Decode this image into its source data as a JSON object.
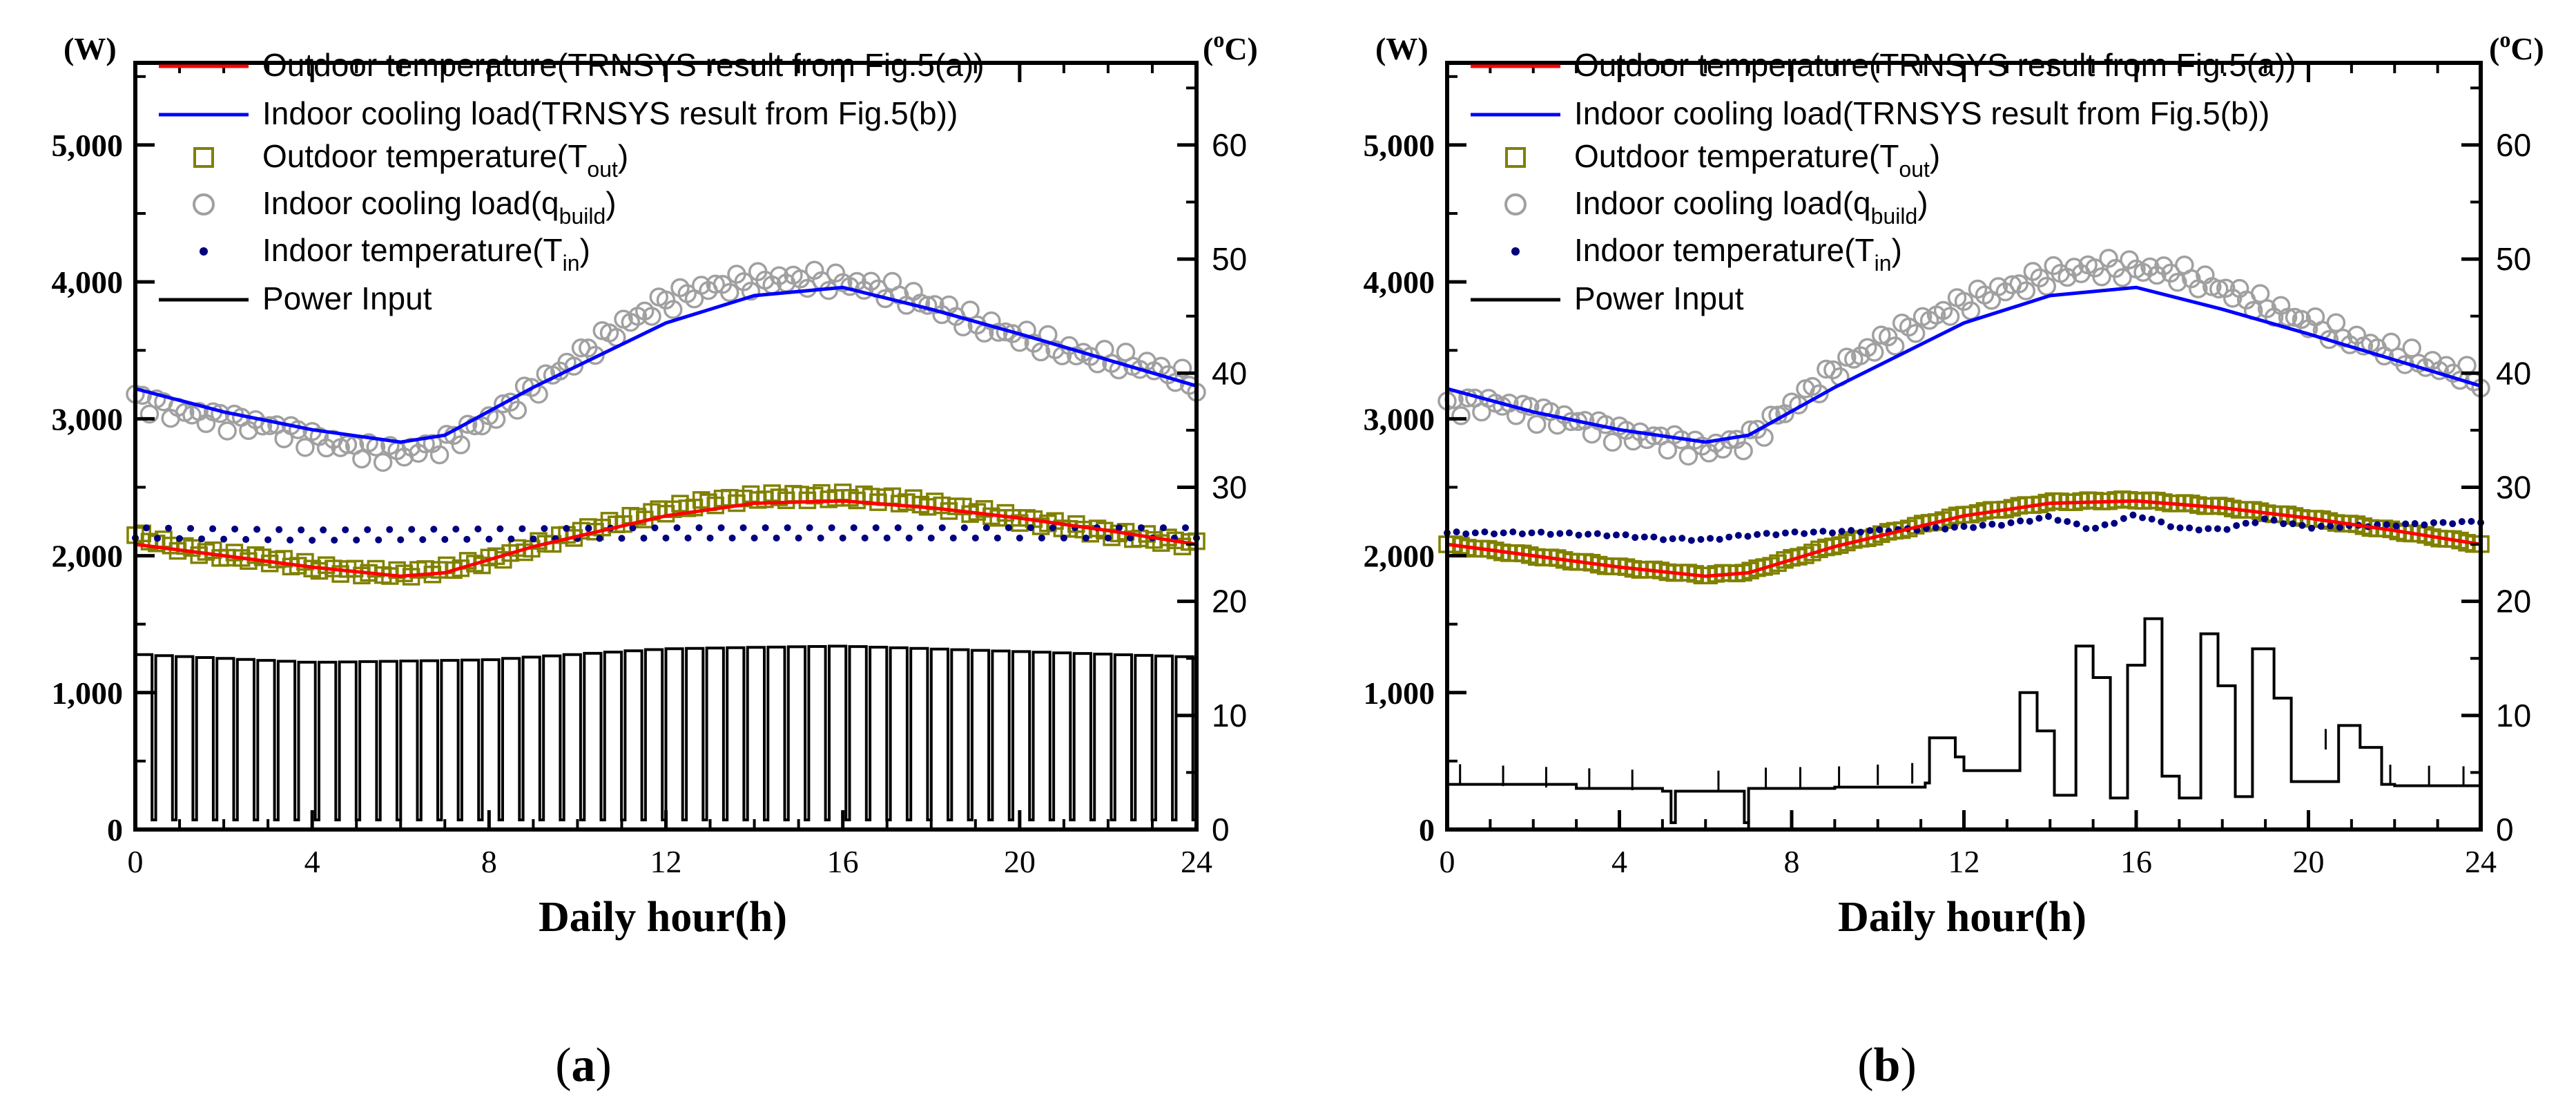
{
  "figure": {
    "panel_labels": [
      "(a)",
      "(b)"
    ]
  },
  "legend": {
    "outdoor_trnsys": "Outdoor temperature(TRNSYS result from Fig.5(a))",
    "indoor_trnsys": "Indoor cooling load(TRNSYS result from Fig.5(b))",
    "outdoor_temp_main": "Outdoor temperature(T",
    "outdoor_temp_sub": "out",
    "indoor_load_main": "Indoor cooling load(q",
    "indoor_load_sub": "build",
    "indoor_temp_main": "Indoor temperature(T",
    "indoor_temp_sub": "in",
    "close_paren": ")",
    "power": "Power Input"
  },
  "colors": {
    "outdoor_line": "#ff0000",
    "indoor_line": "#0000ff",
    "outdoor_marker": "#808000",
    "indoor_marker": "#a0a0a0",
    "indoor_temp_dot": "#000080",
    "power_line": "#000000"
  },
  "chart_data": [
    {
      "type": "line",
      "panel": "(a)",
      "xlabel": "Daily hour(h)",
      "ylabel_left": "(W)",
      "ylabel_right_main": "(",
      "ylabel_right_sup": "o",
      "ylabel_right_unit": "C)",
      "xlim": [
        0,
        24
      ],
      "ylim_left": [
        0,
        5600
      ],
      "ylim_right": [
        0,
        67.2
      ],
      "xticks": [
        "0",
        "4",
        "8",
        "12",
        "16",
        "20",
        "24"
      ],
      "yticks_left": [
        "0",
        "1,000",
        "2,000",
        "3,000",
        "4,000",
        "5,000"
      ],
      "yticks_right": [
        "0",
        "10",
        "20",
        "30",
        "40",
        "50",
        "60"
      ],
      "series": {
        "outdoor_trnsys_C": {
          "x": [
            0,
            2,
            4,
            6,
            7,
            9,
            12,
            14,
            16,
            18,
            20,
            22,
            24
          ],
          "y": [
            25.0,
            24.0,
            23.0,
            22.2,
            22.5,
            24.8,
            27.5,
            28.6,
            28.8,
            28.2,
            27.3,
            26.2,
            25.0
          ]
        },
        "indoor_trnsys_W": {
          "x": [
            0,
            2,
            4,
            6,
            7,
            9,
            12,
            14,
            16,
            18,
            20,
            22,
            24
          ],
          "y": [
            3220,
            3050,
            2920,
            2830,
            2880,
            3230,
            3700,
            3900,
            3960,
            3800,
            3620,
            3430,
            3240
          ]
        },
        "outdoor_scatter_C": {
          "x": [
            0,
            1,
            2,
            3,
            4,
            5,
            6,
            7,
            8,
            9,
            10,
            11,
            12,
            13,
            14,
            15,
            16,
            17,
            18,
            19,
            20,
            21,
            22,
            23,
            24
          ],
          "y": [
            25.8,
            24.7,
            24.0,
            23.7,
            23.0,
            22.6,
            22.4,
            22.8,
            23.6,
            24.8,
            26.0,
            27.0,
            28.0,
            28.7,
            29.1,
            29.2,
            29.2,
            29.0,
            28.5,
            27.9,
            27.2,
            26.6,
            26.0,
            25.5,
            25.0
          ]
        },
        "indoor_scatter_W": {
          "x": [
            0,
            1,
            2,
            3,
            4,
            5,
            6,
            7,
            8,
            9,
            10,
            11,
            12,
            13,
            14,
            15,
            16,
            17,
            18,
            19,
            20,
            21,
            22,
            23,
            24
          ],
          "y": [
            3150,
            3050,
            3000,
            2950,
            2860,
            2780,
            2750,
            2820,
            3000,
            3220,
            3450,
            3680,
            3860,
            3960,
            4010,
            4020,
            4000,
            3940,
            3830,
            3700,
            3600,
            3500,
            3430,
            3380,
            3250
          ]
        },
        "indoor_temp_C": {
          "x": [
            0,
            4,
            8,
            12,
            16,
            20,
            24
          ],
          "y": [
            26.0,
            25.8,
            25.9,
            26.0,
            26.0,
            26.0,
            26.0
          ]
        },
        "power_W": {
          "x": [
            0,
            4,
            8,
            12,
            16,
            20,
            24
          ],
          "y_high": [
            1280,
            1220,
            1240,
            1320,
            1340,
            1300,
            1260
          ],
          "y_low": 70,
          "cycles": 52
        }
      }
    },
    {
      "type": "line",
      "panel": "(b)",
      "xlabel": "Daily hour(h)",
      "ylabel_left": "(W)",
      "ylabel_right_main": "(",
      "ylabel_right_sup": "o",
      "ylabel_right_unit": "C)",
      "xlim": [
        0,
        24
      ],
      "ylim_left": [
        0,
        5600
      ],
      "ylim_right": [
        0,
        67.2
      ],
      "xticks": [
        "0",
        "4",
        "8",
        "12",
        "16",
        "20",
        "24"
      ],
      "yticks_left": [
        "0",
        "1,000",
        "2,000",
        "3,000",
        "4,000",
        "5,000"
      ],
      "yticks_right": [
        "0",
        "10",
        "20",
        "30",
        "40",
        "50",
        "60"
      ],
      "series": {
        "outdoor_trnsys_C": {
          "x": [
            0,
            2,
            4,
            6,
            7,
            9,
            12,
            14,
            16,
            18,
            20,
            22,
            24
          ],
          "y": [
            25.0,
            24.0,
            23.0,
            22.2,
            22.5,
            24.8,
            27.5,
            28.6,
            28.8,
            28.2,
            27.3,
            26.2,
            25.0
          ]
        },
        "indoor_trnsys_W": {
          "x": [
            0,
            2,
            4,
            6,
            7,
            9,
            12,
            14,
            16,
            18,
            20,
            22,
            24
          ],
          "y": [
            3220,
            3050,
            2920,
            2830,
            2880,
            3230,
            3700,
            3900,
            3960,
            3800,
            3620,
            3430,
            3240
          ]
        },
        "outdoor_scatter_C": {
          "x": [
            0,
            2,
            4,
            6,
            7,
            9,
            12,
            14,
            16,
            18,
            20,
            22,
            24
          ],
          "y": [
            25.0,
            24.0,
            23.0,
            22.3,
            22.6,
            24.9,
            27.6,
            28.7,
            28.9,
            28.3,
            27.3,
            26.2,
            25.0
          ]
        },
        "indoor_scatter_W": {
          "x": [
            0,
            1,
            2,
            3,
            4,
            5,
            6,
            7,
            8,
            9,
            10,
            11,
            12,
            13,
            14,
            15,
            16,
            17,
            18,
            19,
            20,
            21,
            22,
            23,
            24
          ],
          "y": [
            3100,
            3120,
            3050,
            2980,
            2900,
            2850,
            2780,
            2850,
            3100,
            3350,
            3550,
            3700,
            3850,
            3950,
            4050,
            4100,
            4100,
            4060,
            3950,
            3820,
            3700,
            3580,
            3480,
            3380,
            3280
          ]
        },
        "indoor_temp_C": {
          "x": [
            0,
            2,
            4,
            5,
            6,
            7,
            8,
            10,
            12,
            13,
            14,
            15,
            16,
            17,
            18,
            19,
            20,
            22,
            24
          ],
          "y": [
            26.0,
            26.0,
            25.8,
            25.5,
            25.4,
            25.8,
            26.0,
            26.2,
            26.5,
            26.8,
            27.4,
            26.3,
            27.6,
            26.4,
            26.3,
            27.2,
            26.5,
            26.7,
            27.0
          ]
        },
        "power_W": {
          "x": [
            0,
            3,
            5,
            5.2,
            5.3,
            6.8,
            6.9,
            7,
            9,
            11.1,
            11.2,
            11.8,
            12,
            13,
            13.3,
            13.7,
            14.1,
            14.6,
            15,
            15.4,
            15.8,
            16.2,
            16.6,
            17,
            17.5,
            17.9,
            18.3,
            18.7,
            19.2,
            19.6,
            20,
            20.7,
            21.2,
            21.7,
            22,
            24
          ],
          "y": [
            330,
            300,
            280,
            50,
            280,
            280,
            50,
            300,
            310,
            340,
            670,
            530,
            430,
            430,
            1000,
            720,
            250,
            1340,
            1110,
            230,
            1200,
            1540,
            390,
            230,
            1430,
            1050,
            240,
            1320,
            960,
            350,
            350,
            760,
            600,
            330,
            320,
            310
          ]
        }
      }
    }
  ]
}
